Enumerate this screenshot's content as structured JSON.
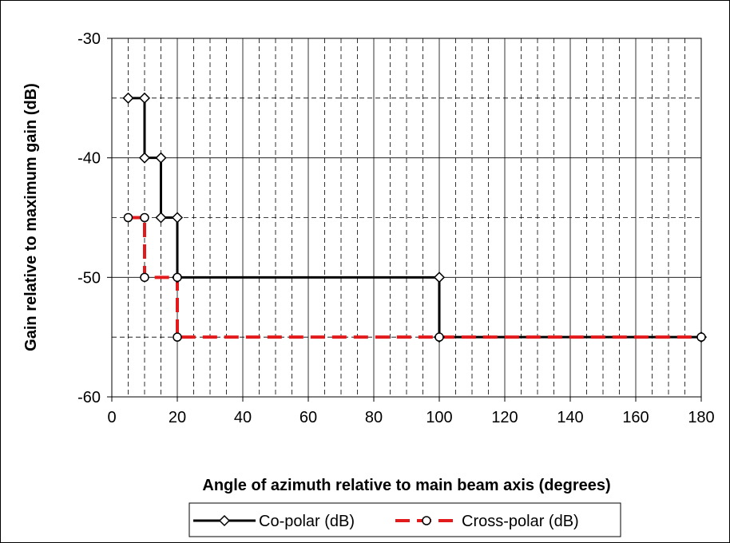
{
  "chart_data": {
    "type": "line",
    "title": "",
    "xlabel": "Angle of azimuth relative to main beam axis (degrees)",
    "ylabel": "Gain relative to maximum gain (dB)",
    "xlim": [
      0,
      180
    ],
    "ylim": [
      -60,
      -30
    ],
    "x_ticks": [
      0,
      20,
      40,
      60,
      80,
      100,
      120,
      140,
      160,
      180
    ],
    "y_ticks": [
      -30,
      -40,
      -50,
      -60
    ],
    "x_tick_labels": [
      "0",
      "20",
      "40",
      "60",
      "80",
      "100",
      "120",
      "140",
      "160",
      "180"
    ],
    "y_tick_labels": [
      "-30",
      "-40",
      "-50",
      "-60"
    ],
    "grid": true,
    "legend_position": "bottom",
    "series": [
      {
        "name": "Co-polar (dB)",
        "color": "#000000",
        "line_style": "solid",
        "marker": "diamond",
        "x": [
          5,
          10,
          10,
          15,
          15,
          20,
          20,
          100,
          100,
          180
        ],
        "y": [
          -35,
          -35,
          -40,
          -40,
          -45,
          -45,
          -50,
          -50,
          -55,
          -55
        ]
      },
      {
        "name": "Cross-polar (dB)",
        "color": "#e31a1c",
        "line_style": "dashed",
        "marker": "circle",
        "x": [
          5,
          10,
          10,
          20,
          20,
          100,
          180
        ],
        "y": [
          -45,
          -45,
          -50,
          -50,
          -55,
          -55,
          -55
        ]
      }
    ]
  }
}
